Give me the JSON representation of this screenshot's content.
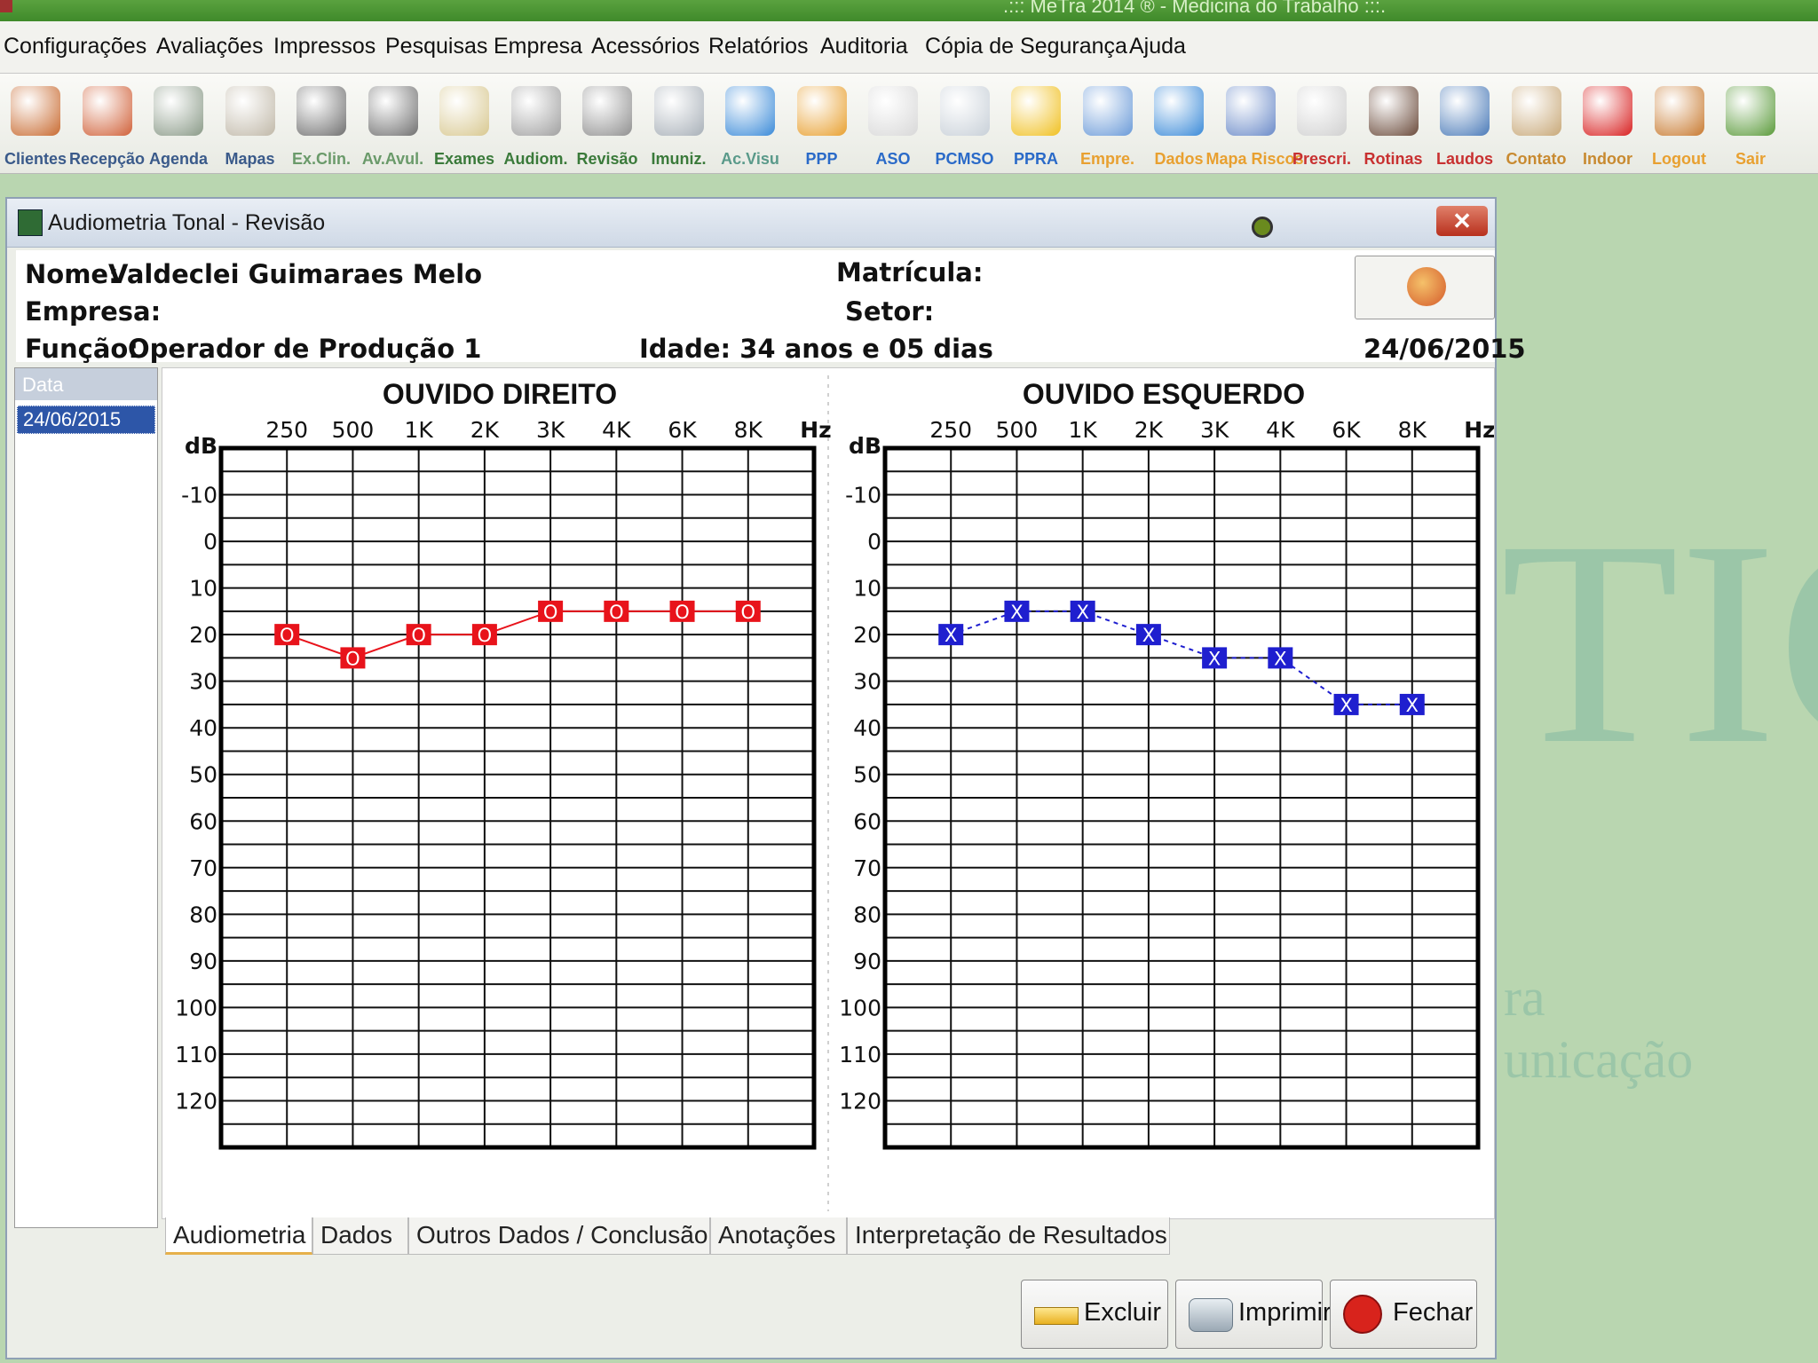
{
  "window": {
    "title": ".::: MeTra 2014 ® - Medicina do Trabalho :::."
  },
  "menu": [
    "Configurações",
    "Avaliações",
    "Impressos",
    "Pesquisas",
    "Empresa",
    "Acessórios",
    "Relatórios",
    "Auditoria",
    "Cópia de Segurança",
    "Ajuda"
  ],
  "toolbar": [
    {
      "label": "Clientes",
      "icon": "clients-icon",
      "color": "#3a5a8a",
      "iconcolor": "#c86a30"
    },
    {
      "label": "Recepção",
      "icon": "reception-icon",
      "color": "#3a5a8a",
      "iconcolor": "#d06038"
    },
    {
      "label": "Agenda",
      "icon": "agenda-icon",
      "color": "#3a5a8a",
      "iconcolor": "#8a9a88"
    },
    {
      "label": "Mapas",
      "icon": "maps-icon",
      "color": "#3a5a8a",
      "iconcolor": "#c0b8a8"
    },
    {
      "label": "Ex.Clin.",
      "icon": "stethoscope-icon",
      "color": "#6a9a6a",
      "iconcolor": "#707070"
    },
    {
      "label": "Av.Avul.",
      "icon": "stethoscope2-icon",
      "color": "#6a9a6a",
      "iconcolor": "#707070"
    },
    {
      "label": "Exames",
      "icon": "exams-icon",
      "color": "#3a7a3a",
      "iconcolor": "#d8c890"
    },
    {
      "label": "Audiom.",
      "icon": "audiometry-icon",
      "color": "#3a7a3a",
      "iconcolor": "#a0a0a0"
    },
    {
      "label": "Revisão",
      "icon": "magnifier-icon",
      "color": "#3a7a3a",
      "iconcolor": "#909090"
    },
    {
      "label": "Imuniz.",
      "icon": "syringe-icon",
      "color": "#3a7a3a",
      "iconcolor": "#a8b0b8"
    },
    {
      "label": "Ac.Visu",
      "icon": "eye-icon",
      "color": "#5a9a8a",
      "iconcolor": "#3a8ad8"
    },
    {
      "label": "PPP",
      "icon": "pencil-icon",
      "color": "#2a6ac8",
      "iconcolor": "#e8a030"
    },
    {
      "label": "ASO",
      "icon": "document-icon",
      "color": "#2a6ac8",
      "iconcolor": "#d8d8d8"
    },
    {
      "label": "PCMSO",
      "icon": "folders-icon",
      "color": "#2a6ac8",
      "iconcolor": "#c8d0d8"
    },
    {
      "label": "PPRA",
      "icon": "helmet-icon",
      "color": "#2a6ac8",
      "iconcolor": "#f0c020"
    },
    {
      "label": "Empre.",
      "icon": "building-icon",
      "color": "#e8a030",
      "iconcolor": "#6a9ad8"
    },
    {
      "label": "Dados",
      "icon": "piechart-icon",
      "color": "#e8a030",
      "iconcolor": "#3a8ad8"
    },
    {
      "label": "Mapa Riscos",
      "icon": "riskmap-icon",
      "color": "#e8a030",
      "iconcolor": "#6a8ac8"
    },
    {
      "label": "Prescri.",
      "icon": "prescription-icon",
      "color": "#c83030",
      "iconcolor": "#d0d0d0"
    },
    {
      "label": "Rotinas",
      "icon": "stamp-icon",
      "color": "#c83030",
      "iconcolor": "#6a4a3a"
    },
    {
      "label": "Laudos",
      "icon": "laptop-icon",
      "color": "#c83030",
      "iconcolor": "#4a7ab8"
    },
    {
      "label": "Contato",
      "icon": "contact-icon",
      "color": "#c88a30",
      "iconcolor": "#c8a878"
    },
    {
      "label": "Indoor",
      "icon": "indoor-icon",
      "color": "#c88a30",
      "iconcolor": "#d82020"
    },
    {
      "label": "Logout",
      "icon": "logout-icon",
      "color": "#e8a030",
      "iconcolor": "#c87a30"
    },
    {
      "label": "Sair",
      "icon": "exit-icon",
      "color": "#e8a030",
      "iconcolor": "#5a9a3a"
    }
  ],
  "desktop": {
    "wm_big": "TIC",
    "wm_small1": "ra",
    "wm_small2": "unicação"
  },
  "dialog": {
    "title": "Audiometria Tonal - Revisão",
    "close": "✕",
    "nome_label": "Nome:",
    "nome": "Valdeclei Guimaraes Melo",
    "empresa_label": "Empresa:",
    "empresa": "",
    "funcao_label": "Função:",
    "funcao": "Operador de Produção 1",
    "matricula_label": "Matrícula:",
    "matricula": "",
    "setor_label": "Setor:",
    "setor": "",
    "idade": "Idade: 34 anos e 05 dias",
    "date": "24/06/2015",
    "list_header": "Data",
    "list_items": [
      "24/06/2015"
    ]
  },
  "tabs": [
    "Audiometria",
    "Dados",
    "Outros Dados / Conclusão",
    "Anotações",
    "Interpretação de Resultados"
  ],
  "buttons": {
    "excluir": "Excluir",
    "imprimir": "Imprimir",
    "fechar": "Fechar"
  },
  "chart_data": [
    {
      "type": "line",
      "title": "OUVIDO DIREITO",
      "x": [
        "250",
        "500",
        "1K",
        "2K",
        "3K",
        "4K",
        "6K",
        "8K"
      ],
      "xunit": "Hz",
      "yunit": "dB",
      "yticks": [
        -10,
        0,
        10,
        20,
        30,
        40,
        50,
        60,
        70,
        80,
        90,
        100,
        110,
        120
      ],
      "ylim": [
        -20,
        130
      ],
      "y_inverted": true,
      "series": [
        {
          "values": [
            20,
            25,
            20,
            20,
            15,
            15,
            15,
            15
          ],
          "marker": "O",
          "color": "#e8131b",
          "line": "solid"
        }
      ]
    },
    {
      "type": "line",
      "title": "OUVIDO ESQUERDO",
      "x": [
        "250",
        "500",
        "1K",
        "2K",
        "3K",
        "4K",
        "6K",
        "8K"
      ],
      "xunit": "Hz",
      "yunit": "dB",
      "yticks": [
        -10,
        0,
        10,
        20,
        30,
        40,
        50,
        60,
        70,
        80,
        90,
        100,
        110,
        120
      ],
      "ylim": [
        -20,
        130
      ],
      "y_inverted": true,
      "series": [
        {
          "values": [
            20,
            15,
            15,
            20,
            25,
            25,
            35,
            35
          ],
          "marker": "X",
          "color": "#1f1fcf",
          "line": "dashed"
        }
      ]
    }
  ]
}
